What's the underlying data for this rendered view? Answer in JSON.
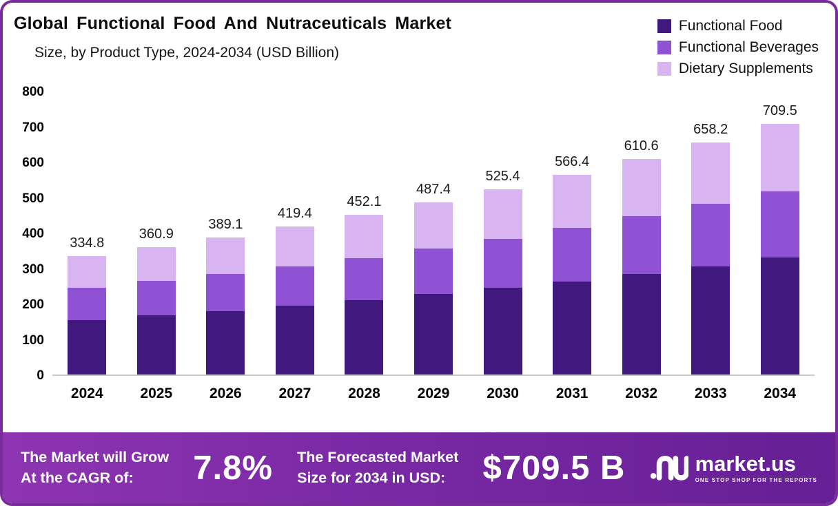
{
  "header": {
    "title": "Global Functional Food And Nutraceuticals Market",
    "subtitle": "Size, by Product Type, 2024-2034 (USD Billion)"
  },
  "legend": [
    {
      "label": "Functional Food",
      "color": "#41187e"
    },
    {
      "label": "Functional Beverages",
      "color": "#8f52d4"
    },
    {
      "label": "Dietary Supplements",
      "color": "#d8b5f0"
    }
  ],
  "chart_data": {
    "type": "bar",
    "stacked": true,
    "title": "Global Functional Food And Nutraceuticals Market Size, by Product Type, 2024-2034 (USD Billion)",
    "categories": [
      "2024",
      "2025",
      "2026",
      "2027",
      "2028",
      "2029",
      "2030",
      "2031",
      "2032",
      "2033",
      "2034"
    ],
    "series": [
      {
        "name": "Functional Food",
        "color": "#41187e",
        "values": [
          155.0,
          167.0,
          180.0,
          196.0,
          211.0,
          228.0,
          245.0,
          264.0,
          285.0,
          307.0,
          331.0
        ]
      },
      {
        "name": "Functional Beverages",
        "color": "#8f52d4",
        "values": [
          90.0,
          98.0,
          105.0,
          111.0,
          119.0,
          129.0,
          140.0,
          151.0,
          163.0,
          176.0,
          189.0
        ]
      },
      {
        "name": "Dietary Supplements",
        "color": "#d8b5f0",
        "values": [
          89.8,
          95.9,
          104.1,
          112.4,
          122.1,
          130.4,
          140.4,
          151.4,
          162.6,
          175.2,
          189.5
        ]
      }
    ],
    "totals": [
      "334.8",
      "360.9",
      "389.1",
      "419.4",
      "452.1",
      "487.4",
      "525.4",
      "566.4",
      "610.6",
      "658.2",
      "709.5"
    ],
    "xlabel": "",
    "ylabel": "",
    "ylim": [
      0,
      800
    ],
    "yticks": [
      0,
      100,
      200,
      300,
      400,
      500,
      600,
      700,
      800
    ],
    "grid": false,
    "legend_position": "top-right"
  },
  "banner": {
    "cagr_label_line1": "The Market will Grow",
    "cagr_label_line2": "At the CAGR of:",
    "cagr_value": "7.8%",
    "forecast_label_line1": "The Forecasted Market",
    "forecast_label_line2": "Size for 2034 in USD:",
    "forecast_value": "$709.5 B",
    "brand": "market.us",
    "brand_tagline": "ONE STOP SHOP FOR THE REPORTS"
  },
  "colors": {
    "frame_border": "#7a2b9d",
    "banner_gradient_start": "#8e34b2",
    "banner_gradient_end": "#661f95",
    "axis_line": "#c9c9c9"
  }
}
